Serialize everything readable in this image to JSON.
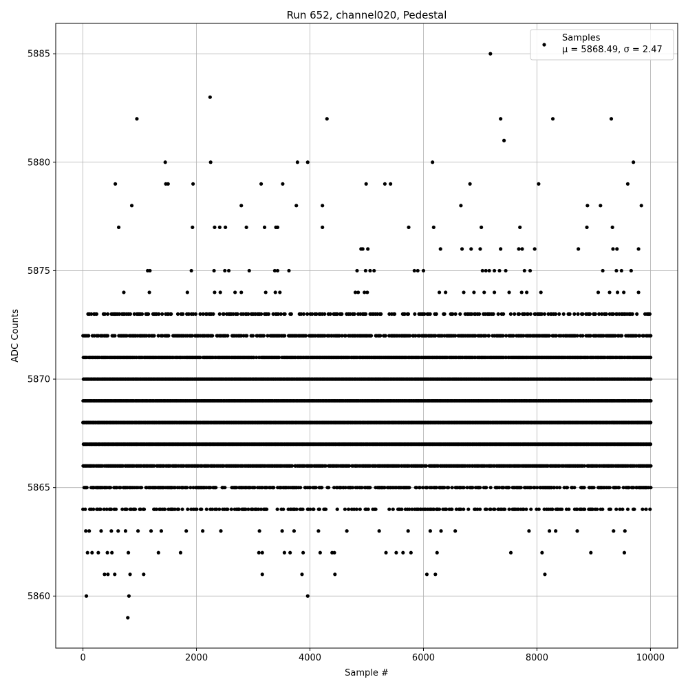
{
  "chart_data": {
    "type": "scatter",
    "title": "Run 652, channel020, Pedestal",
    "xlabel": "Sample #",
    "ylabel": "ADC Counts",
    "xlim": [
      -480,
      10480
    ],
    "ylim": [
      5857.6,
      5886.4
    ],
    "xticks": [
      0,
      2000,
      4000,
      6000,
      8000,
      10000
    ],
    "yticks": [
      5860,
      5865,
      5870,
      5875,
      5880,
      5885
    ],
    "grid": true,
    "legend_position": "top-right",
    "marker_color": "#000000",
    "series": [
      {
        "name": "Samples",
        "stats_label": "μ = 5868.49, σ = 2.47",
        "mean": 5868.49,
        "sigma": 2.47,
        "n_samples": 10000,
        "dense_bands": [
          {
            "y": 5864,
            "x_range": [
              0,
              10000
            ],
            "density": 0.35
          },
          {
            "y": 5865,
            "x_range": [
              0,
              10000
            ],
            "density": 0.6
          },
          {
            "y": 5866,
            "x_range": [
              0,
              10000
            ],
            "density": 0.9
          },
          {
            "y": 5867,
            "x_range": [
              0,
              10000
            ],
            "density": 1.0
          },
          {
            "y": 5868,
            "x_range": [
              0,
              10000
            ],
            "density": 1.0
          },
          {
            "y": 5869,
            "x_range": [
              0,
              10000
            ],
            "density": 1.0
          },
          {
            "y": 5870,
            "x_range": [
              0,
              10000
            ],
            "density": 1.0
          },
          {
            "y": 5871,
            "x_range": [
              0,
              10000
            ],
            "density": 0.9
          },
          {
            "y": 5872,
            "x_range": [
              0,
              10000
            ],
            "density": 0.65
          },
          {
            "y": 5873,
            "x_range": [
              0,
              10000
            ],
            "density": 0.4
          }
        ],
        "points": [
          [
            60,
            5860
          ],
          [
            790,
            5859
          ],
          [
            810,
            5860
          ],
          [
            3960,
            5860
          ],
          [
            8140,
            5861
          ],
          [
            950,
            5882
          ],
          [
            2240,
            5883
          ],
          [
            4300,
            5882
          ],
          [
            7180,
            5885
          ],
          [
            7360,
            5882
          ],
          [
            7420,
            5881
          ],
          [
            8280,
            5882
          ],
          [
            9310,
            5882
          ],
          [
            1450,
            5880
          ],
          [
            2250,
            5880
          ],
          [
            3780,
            5880
          ],
          [
            3960,
            5880
          ],
          [
            6160,
            5880
          ],
          [
            9700,
            5880
          ],
          [
            570,
            5879
          ],
          [
            1460,
            5879
          ],
          [
            1500,
            5879
          ],
          [
            1940,
            5879
          ],
          [
            3140,
            5879
          ],
          [
            3520,
            5879
          ],
          [
            4990,
            5879
          ],
          [
            5320,
            5879
          ],
          [
            5420,
            5879
          ],
          [
            6820,
            5879
          ],
          [
            8030,
            5879
          ],
          [
            9600,
            5879
          ],
          [
            860,
            5878
          ],
          [
            2790,
            5878
          ],
          [
            3760,
            5878
          ],
          [
            4220,
            5878
          ],
          [
            6660,
            5878
          ],
          [
            8890,
            5878
          ],
          [
            9120,
            5878
          ],
          [
            9840,
            5878
          ],
          [
            630,
            5877
          ],
          [
            1930,
            5877
          ],
          [
            2320,
            5877
          ],
          [
            2410,
            5877
          ],
          [
            2510,
            5877
          ],
          [
            2880,
            5877
          ],
          [
            3200,
            5877
          ],
          [
            3400,
            5877
          ],
          [
            3430,
            5877
          ],
          [
            4220,
            5877
          ],
          [
            5740,
            5877
          ],
          [
            6180,
            5877
          ],
          [
            7020,
            5877
          ],
          [
            7700,
            5877
          ],
          [
            8880,
            5877
          ],
          [
            9330,
            5877
          ],
          [
            4900,
            5876
          ],
          [
            4930,
            5876
          ],
          [
            5020,
            5876
          ],
          [
            6300,
            5876
          ],
          [
            6680,
            5876
          ],
          [
            6840,
            5876
          ],
          [
            7000,
            5876
          ],
          [
            7360,
            5876
          ],
          [
            7680,
            5876
          ],
          [
            7740,
            5876
          ],
          [
            7960,
            5876
          ],
          [
            8730,
            5876
          ],
          [
            9340,
            5876
          ],
          [
            9410,
            5876
          ],
          [
            9790,
            5876
          ],
          [
            1140,
            5875
          ],
          [
            1180,
            5875
          ],
          [
            1910,
            5875
          ],
          [
            2310,
            5875
          ],
          [
            2500,
            5875
          ],
          [
            2570,
            5875
          ],
          [
            2930,
            5875
          ],
          [
            3380,
            5875
          ],
          [
            3430,
            5875
          ],
          [
            3630,
            5875
          ],
          [
            4830,
            5875
          ],
          [
            4980,
            5875
          ],
          [
            5060,
            5875
          ],
          [
            5130,
            5875
          ],
          [
            5840,
            5875
          ],
          [
            5900,
            5875
          ],
          [
            6000,
            5875
          ],
          [
            7040,
            5875
          ],
          [
            7100,
            5875
          ],
          [
            7160,
            5875
          ],
          [
            7250,
            5875
          ],
          [
            7340,
            5875
          ],
          [
            7450,
            5875
          ],
          [
            7780,
            5875
          ],
          [
            7880,
            5875
          ],
          [
            9160,
            5875
          ],
          [
            9400,
            5875
          ],
          [
            9490,
            5875
          ],
          [
            9660,
            5875
          ],
          [
            720,
            5874
          ],
          [
            1170,
            5874
          ],
          [
            1840,
            5874
          ],
          [
            2320,
            5874
          ],
          [
            2420,
            5874
          ],
          [
            2680,
            5874
          ],
          [
            2790,
            5874
          ],
          [
            3220,
            5874
          ],
          [
            3390,
            5874
          ],
          [
            3470,
            5874
          ],
          [
            4800,
            5874
          ],
          [
            4850,
            5874
          ],
          [
            4960,
            5874
          ],
          [
            5010,
            5874
          ],
          [
            6280,
            5874
          ],
          [
            6390,
            5874
          ],
          [
            6710,
            5874
          ],
          [
            6890,
            5874
          ],
          [
            7070,
            5874
          ],
          [
            7250,
            5874
          ],
          [
            7510,
            5874
          ],
          [
            7730,
            5874
          ],
          [
            7820,
            5874
          ],
          [
            8070,
            5874
          ],
          [
            9080,
            5874
          ],
          [
            9280,
            5874
          ],
          [
            9420,
            5874
          ],
          [
            9530,
            5874
          ],
          [
            9790,
            5874
          ],
          [
            80,
            5862
          ],
          [
            160,
            5862
          ],
          [
            270,
            5862
          ],
          [
            430,
            5862
          ],
          [
            510,
            5862
          ],
          [
            800,
            5862
          ],
          [
            1330,
            5862
          ],
          [
            1720,
            5862
          ],
          [
            3100,
            5862
          ],
          [
            3160,
            5862
          ],
          [
            3550,
            5862
          ],
          [
            3650,
            5862
          ],
          [
            3880,
            5862
          ],
          [
            4180,
            5862
          ],
          [
            4390,
            5862
          ],
          [
            4430,
            5862
          ],
          [
            5340,
            5862
          ],
          [
            5520,
            5862
          ],
          [
            5640,
            5862
          ],
          [
            5780,
            5862
          ],
          [
            6240,
            5862
          ],
          [
            7540,
            5862
          ],
          [
            8090,
            5862
          ],
          [
            8950,
            5862
          ],
          [
            9540,
            5862
          ],
          [
            380,
            5861
          ],
          [
            440,
            5861
          ],
          [
            560,
            5861
          ],
          [
            830,
            5861
          ],
          [
            1070,
            5861
          ],
          [
            3160,
            5861
          ],
          [
            3860,
            5861
          ],
          [
            4440,
            5861
          ],
          [
            6060,
            5861
          ],
          [
            6210,
            5861
          ],
          [
            50,
            5863
          ],
          [
            110,
            5863
          ],
          [
            320,
            5863
          ],
          [
            500,
            5863
          ],
          [
            620,
            5863
          ],
          [
            750,
            5863
          ],
          [
            970,
            5863
          ],
          [
            1200,
            5863
          ],
          [
            1380,
            5863
          ],
          [
            1820,
            5863
          ],
          [
            2110,
            5863
          ],
          [
            2430,
            5863
          ],
          [
            3110,
            5863
          ],
          [
            3510,
            5863
          ],
          [
            3720,
            5863
          ],
          [
            4150,
            5863
          ],
          [
            4650,
            5863
          ],
          [
            5220,
            5863
          ],
          [
            5730,
            5863
          ],
          [
            6120,
            5863
          ],
          [
            6310,
            5863
          ],
          [
            6560,
            5863
          ],
          [
            7860,
            5863
          ],
          [
            8220,
            5863
          ],
          [
            8330,
            5863
          ],
          [
            8710,
            5863
          ],
          [
            9350,
            5863
          ],
          [
            9550,
            5863
          ]
        ]
      }
    ]
  }
}
